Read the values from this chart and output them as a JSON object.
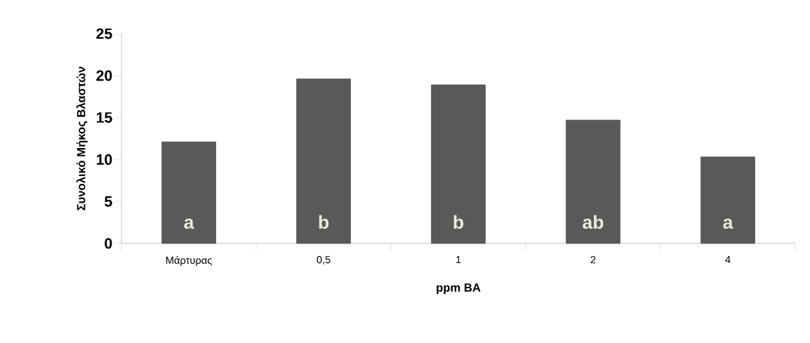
{
  "chart_data": {
    "type": "bar",
    "categories": [
      "Μάρτυρας",
      "0,5",
      "1",
      "2",
      "4"
    ],
    "values": [
      12.1,
      19.6,
      18.9,
      14.7,
      10.3
    ],
    "color": "#595959",
    "xlabel": "ppm BA",
    "ylabel": "Συνολικό Μήκος Βλαστών",
    "ylim": [
      0,
      25
    ],
    "yticks": [
      0,
      5,
      10,
      15,
      20,
      25
    ],
    "annotations": [
      "a",
      "b",
      "b",
      "ab",
      "a"
    ]
  }
}
